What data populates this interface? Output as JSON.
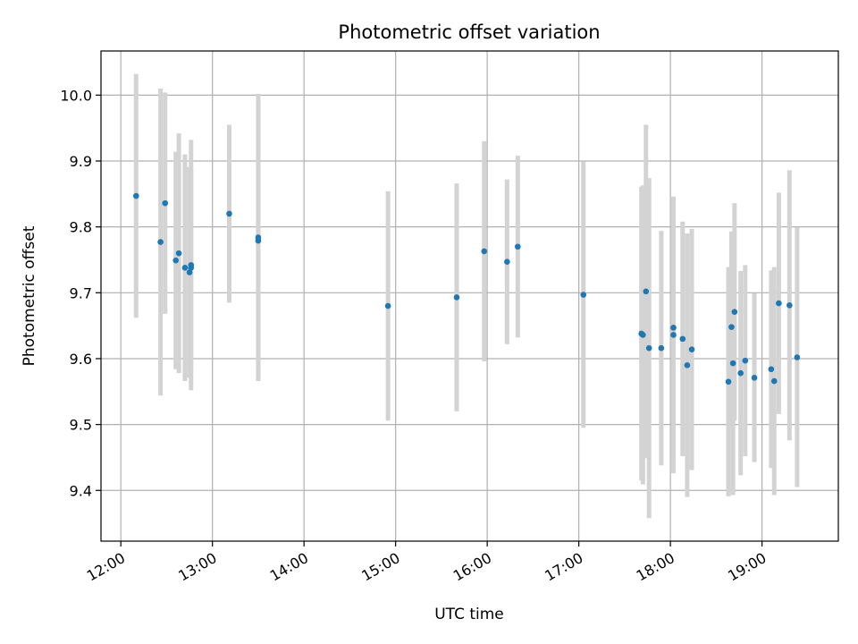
{
  "chart_data": {
    "type": "scatter",
    "title": "Photometric offset variation",
    "xlabel": "UTC time",
    "ylabel": "Photometric offset",
    "x_unit": "hours UTC",
    "xlim": [
      "11:47",
      "19:50"
    ],
    "ylim": [
      9.323,
      10.067
    ],
    "x_ticks": [
      "12:00",
      "13:00",
      "14:00",
      "15:00",
      "16:00",
      "17:00",
      "18:00",
      "19:00"
    ],
    "y_ticks": [
      "9.4",
      "9.5",
      "9.6",
      "9.7",
      "9.8",
      "9.9",
      "10.0"
    ],
    "grid": true,
    "point_color": "#1f77b4",
    "errorbar_color": "#d3d3d3",
    "points": [
      {
        "time": "12:10",
        "y": 9.847,
        "err": 0.185
      },
      {
        "time": "12:26",
        "y": 9.777,
        "err": 0.233
      },
      {
        "time": "12:29",
        "y": 9.836,
        "err": 0.168
      },
      {
        "time": "12:36",
        "y": 9.749,
        "err": 0.165
      },
      {
        "time": "12:38",
        "y": 9.76,
        "err": 0.182
      },
      {
        "time": "12:42",
        "y": 9.738,
        "err": 0.172
      },
      {
        "time": "12:45",
        "y": 9.731,
        "err": 0.16
      },
      {
        "time": "12:46",
        "y": 9.742,
        "err": 0.19
      },
      {
        "time": "12:46",
        "y": 9.738,
        "err": 0.15
      },
      {
        "time": "13:11",
        "y": 9.82,
        "err": 0.135
      },
      {
        "time": "13:30",
        "y": 9.784,
        "err": 0.218
      },
      {
        "time": "13:30",
        "y": 9.779,
        "err": 0.212
      },
      {
        "time": "14:55",
        "y": 9.68,
        "err": 0.174
      },
      {
        "time": "15:40",
        "y": 9.693,
        "err": 0.173
      },
      {
        "time": "15:58",
        "y": 9.763,
        "err": 0.167
      },
      {
        "time": "16:13",
        "y": 9.747,
        "err": 0.125
      },
      {
        "time": "16:20",
        "y": 9.77,
        "err": 0.138
      },
      {
        "time": "17:03",
        "y": 9.697,
        "err": 0.202
      },
      {
        "time": "17:41",
        "y": 9.638,
        "err": 0.223
      },
      {
        "time": "17:42",
        "y": 9.636,
        "err": 0.227
      },
      {
        "time": "17:44",
        "y": 9.702,
        "err": 0.253
      },
      {
        "time": "17:46",
        "y": 9.616,
        "err": 0.258
      },
      {
        "time": "17:54",
        "y": 9.616,
        "err": 0.178
      },
      {
        "time": "18:02",
        "y": 9.636,
        "err": 0.21
      },
      {
        "time": "18:02",
        "y": 9.647,
        "err": 0.198
      },
      {
        "time": "18:08",
        "y": 9.63,
        "err": 0.178
      },
      {
        "time": "18:11",
        "y": 9.59,
        "err": 0.2
      },
      {
        "time": "18:14",
        "y": 9.614,
        "err": 0.183
      },
      {
        "time": "18:38",
        "y": 9.565,
        "err": 0.174
      },
      {
        "time": "18:40",
        "y": 9.648,
        "err": 0.145
      },
      {
        "time": "18:41",
        "y": 9.593,
        "err": 0.2
      },
      {
        "time": "18:42",
        "y": 9.671,
        "err": 0.165
      },
      {
        "time": "18:46",
        "y": 9.578,
        "err": 0.155
      },
      {
        "time": "18:49",
        "y": 9.597,
        "err": 0.145
      },
      {
        "time": "18:55",
        "y": 9.571,
        "err": 0.128
      },
      {
        "time": "19:06",
        "y": 9.584,
        "err": 0.15
      },
      {
        "time": "19:08",
        "y": 9.566,
        "err": 0.173
      },
      {
        "time": "19:11",
        "y": 9.684,
        "err": 0.168
      },
      {
        "time": "19:18",
        "y": 9.681,
        "err": 0.205
      },
      {
        "time": "19:23",
        "y": 9.602,
        "err": 0.197
      }
    ]
  }
}
